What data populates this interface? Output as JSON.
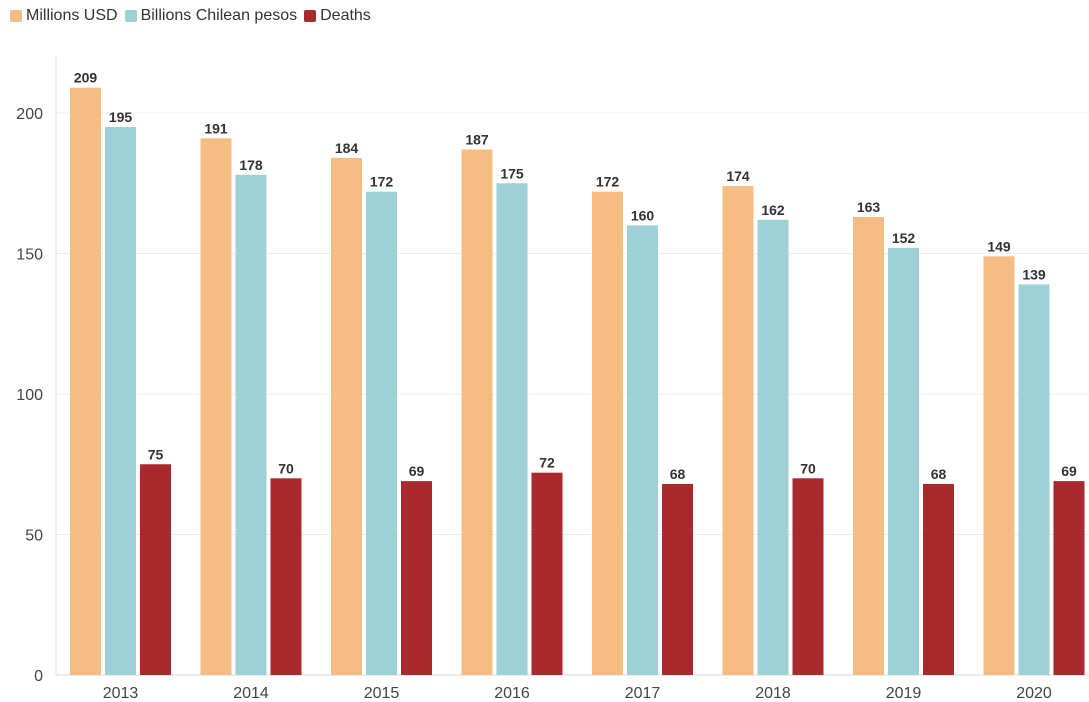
{
  "legend": {
    "items": [
      {
        "label": "Millions USD",
        "color": "#f5bc84"
      },
      {
        "label": "Billions Chilean pesos",
        "color": "#9ed0d6"
      },
      {
        "label": "Deaths",
        "color": "#a82a2f"
      }
    ]
  },
  "chart_data": {
    "type": "bar",
    "title": "",
    "xlabel": "",
    "ylabel": "",
    "categories": [
      "2013",
      "2014",
      "2015",
      "2016",
      "2017",
      "2018",
      "2019",
      "2020"
    ],
    "series": [
      {
        "name": "Millions USD",
        "color": "#f5bc84",
        "values": [
          209,
          191,
          184,
          187,
          172,
          174,
          163,
          149
        ]
      },
      {
        "name": "Billions Chilean pesos",
        "color": "#9ed0d6",
        "values": [
          195,
          178,
          172,
          175,
          160,
          162,
          152,
          139
        ]
      },
      {
        "name": "Deaths",
        "color": "#a82a2f",
        "values": [
          75,
          70,
          69,
          72,
          68,
          70,
          68,
          69
        ]
      }
    ],
    "ylim": [
      0,
      220
    ],
    "yticks": [
      0,
      50,
      100,
      150,
      200
    ],
    "grid": true,
    "legend_position": "top-left",
    "data_labels": true
  }
}
